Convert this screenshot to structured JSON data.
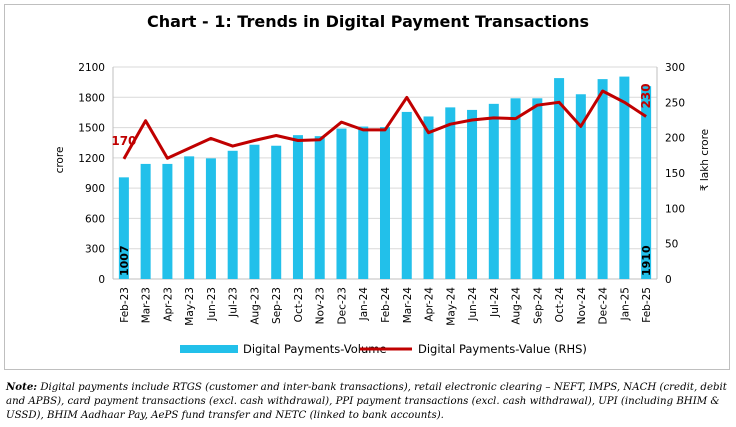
{
  "chart_data": {
    "type": "bar",
    "title": "Chart - 1: Trends in Digital Payment Transactions",
    "categories": [
      "Feb-23",
      "Mar-23",
      "Apr-23",
      "May-23",
      "Jun-23",
      "Jul-23",
      "Aug-23",
      "Sep-23",
      "Oct-23",
      "Nov-23",
      "Dec-23",
      "Jan-24",
      "Feb-24",
      "Mar-24",
      "Apr-24",
      "May-24",
      "Jun-24",
      "Jul-24",
      "Aug-24",
      "Sep-24",
      "Oct-24",
      "Nov-24",
      "Dec-24",
      "Jan-25",
      "Feb-25"
    ],
    "series": [
      {
        "name": "Digital Payments-Volume",
        "type": "bar",
        "axis": "left",
        "color": "#22c0ea",
        "values": [
          1007,
          1140,
          1140,
          1215,
          1195,
          1270,
          1330,
          1320,
          1425,
          1415,
          1490,
          1510,
          1505,
          1655,
          1610,
          1700,
          1675,
          1735,
          1790,
          1790,
          1990,
          1830,
          1980,
          2005,
          1910
        ]
      },
      {
        "name": "Digital Payments-Value (RHS)",
        "type": "line",
        "axis": "right",
        "color": "#c00000",
        "values": [
          170,
          224,
          171,
          185,
          199,
          188,
          196,
          203,
          196,
          197,
          222,
          211,
          211,
          257,
          207,
          219,
          225,
          228,
          227,
          246,
          250,
          216,
          266,
          250,
          230
        ]
      }
    ],
    "ylabel": "crore",
    "y2label": "₹ lakh crore",
    "ylim": [
      0,
      2100
    ],
    "y2lim": [
      0,
      300
    ],
    "yticks": [
      0,
      300,
      600,
      900,
      1200,
      1500,
      1800,
      2100
    ],
    "y2ticks": [
      0,
      50,
      100,
      150,
      200,
      250,
      300
    ],
    "data_labels": [
      {
        "series": "Digital Payments-Value (RHS)",
        "index": 0,
        "text": "170"
      },
      {
        "series": "Digital Payments-Value (RHS)",
        "index": 24,
        "text": "230"
      },
      {
        "series": "Digital Payments-Volume",
        "index": 0,
        "text": "1007"
      },
      {
        "series": "Digital Payments-Volume",
        "index": 24,
        "text": "1910"
      }
    ],
    "grid": "horizontal",
    "legend": "bottom"
  },
  "note": {
    "label": "Note:",
    "text": "Digital payments include RTGS (customer and inter-bank transactions), retail electronic clearing – NEFT, IMPS, NACH (credit, debit and APBS), card payment transactions (excl. cash withdrawal), PPI payment transactions (excl. cash withdrawal), UPI (including BHIM & USSD), BHIM Aadhaar Pay, AePS fund transfer and NETC (linked to bank accounts)."
  }
}
